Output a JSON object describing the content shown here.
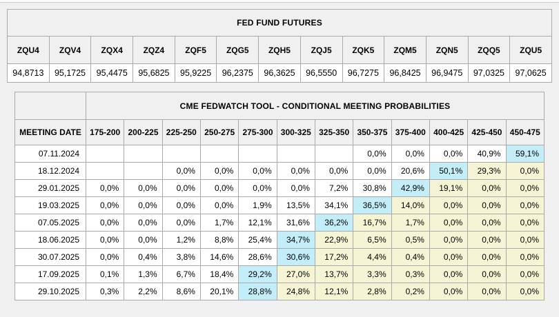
{
  "colors": {
    "page_bg": "#f0f0f0",
    "header_bg": "#f0f0f0",
    "cell_bg": "#ffffff",
    "max_highlight": "#c3edf8",
    "tail_highlight": "#f5f5d6",
    "grid_border": "#a9a9a9"
  },
  "fed_fund_futures": {
    "title": "FED FUND FUTURES",
    "tickers": [
      "ZQU4",
      "ZQV4",
      "ZQX4",
      "ZQZ4",
      "ZQF5",
      "ZQG5",
      "ZQH5",
      "ZQJ5",
      "ZQK5",
      "ZQM5",
      "ZQN5",
      "ZQQ5",
      "ZQU5"
    ],
    "prices": [
      "94,8713",
      "95,1725",
      "95,4475",
      "95,6825",
      "95,9225",
      "96,2375",
      "96,3625",
      "96,5550",
      "96,7275",
      "96,8425",
      "96,9475",
      "97,0325",
      "97,0625"
    ]
  },
  "fedwatch": {
    "title": "CME FEDWATCH TOOL - CONDITIONAL MEETING PROBABILITIES",
    "date_header": "MEETING DATE",
    "rate_bins": [
      "175-200",
      "200-225",
      "225-250",
      "250-275",
      "275-300",
      "300-325",
      "325-350",
      "350-375",
      "375-400",
      "400-425",
      "425-450",
      "450-475"
    ],
    "rows": [
      {
        "date": "07.11.2024",
        "max_index": 11,
        "cells": [
          "",
          "",
          "",
          "",
          "",
          "",
          "",
          "0,0%",
          "0,0%",
          "0,0%",
          "40,9%",
          "59,1%"
        ]
      },
      {
        "date": "18.12.2024",
        "max_index": 9,
        "cells": [
          "",
          "",
          "0,0%",
          "0,0%",
          "0,0%",
          "0,0%",
          "0,0%",
          "0,0%",
          "20,6%",
          "50,1%",
          "29,3%",
          "0,0%"
        ]
      },
      {
        "date": "29.01.2025",
        "max_index": 8,
        "cells": [
          "0,0%",
          "0,0%",
          "0,0%",
          "0,0%",
          "0,0%",
          "0,0%",
          "7,2%",
          "30,8%",
          "42,9%",
          "19,1%",
          "0,0%",
          "0,0%"
        ]
      },
      {
        "date": "19.03.2025",
        "max_index": 7,
        "cells": [
          "0,0%",
          "0,0%",
          "0,0%",
          "0,0%",
          "1,9%",
          "13,5%",
          "34,1%",
          "36,5%",
          "14,0%",
          "0,0%",
          "0,0%",
          "0,0%"
        ]
      },
      {
        "date": "07.05.2025",
        "max_index": 6,
        "cells": [
          "0,0%",
          "0,0%",
          "0,0%",
          "1,7%",
          "12,1%",
          "31,6%",
          "36,2%",
          "16,7%",
          "1,7%",
          "0,0%",
          "0,0%",
          "0,0%"
        ]
      },
      {
        "date": "18.06.2025",
        "max_index": 5,
        "cells": [
          "0,0%",
          "0,0%",
          "1,2%",
          "8,8%",
          "25,4%",
          "34,7%",
          "22,9%",
          "6,5%",
          "0,5%",
          "0,0%",
          "0,0%",
          "0,0%"
        ]
      },
      {
        "date": "30.07.2025",
        "max_index": 5,
        "cells": [
          "0,0%",
          "0,4%",
          "3,8%",
          "14,6%",
          "28,6%",
          "30,6%",
          "17,2%",
          "4,4%",
          "0,4%",
          "0,0%",
          "0,0%",
          "0,0%"
        ]
      },
      {
        "date": "17.09.2025",
        "max_index": 4,
        "cells": [
          "0,1%",
          "1,3%",
          "6,7%",
          "18,4%",
          "29,2%",
          "27,0%",
          "13,7%",
          "3,3%",
          "0,3%",
          "0,0%",
          "0,0%",
          "0,0%"
        ]
      },
      {
        "date": "29.10.2025",
        "max_index": 4,
        "cells": [
          "0,3%",
          "2,2%",
          "8,6%",
          "20,1%",
          "28,8%",
          "24,8%",
          "12,1%",
          "2,8%",
          "0,2%",
          "0,0%",
          "0,0%",
          "0,0%"
        ]
      }
    ]
  }
}
